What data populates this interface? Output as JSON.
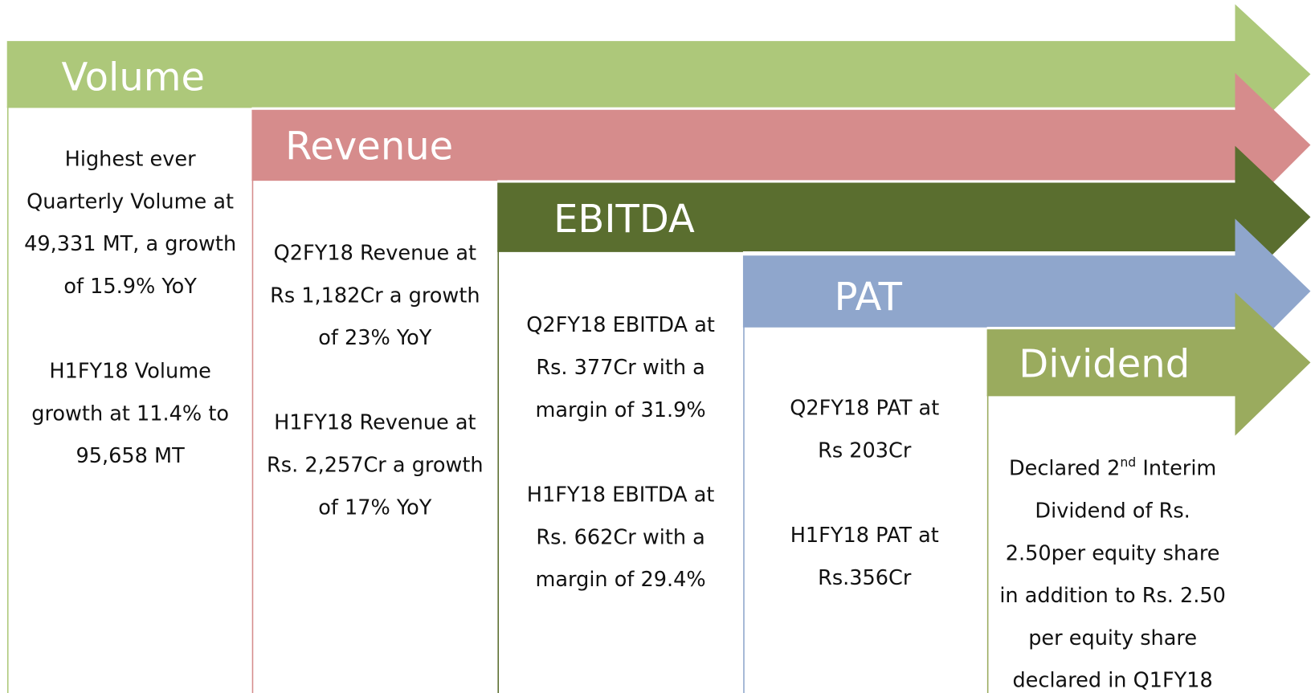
{
  "columns": [
    {
      "title": "Volume",
      "paragraphs": [
        [
          "Highest ever",
          "Quarterly Volume at",
          "49,331 MT, a growth",
          "of 15.9% YoY"
        ],
        [
          "H1FY18 Volume",
          "growth at 11.4% to",
          "95,658 MT"
        ]
      ]
    },
    {
      "title": "Revenue",
      "paragraphs": [
        [
          "Q2FY18 Revenue at",
          "Rs 1,182Cr a growth",
          "of 23% YoY"
        ],
        [
          "H1FY18 Revenue at",
          "Rs. 2,257Cr a growth",
          "of 17% YoY"
        ]
      ]
    },
    {
      "title": "EBITDA",
      "paragraphs": [
        [
          "Q2FY18 EBITDA at",
          "Rs. 377Cr with a",
          "margin of 31.9%"
        ],
        [
          "H1FY18 EBITDA at",
          "Rs. 662Cr with a",
          "margin of 29.4%"
        ]
      ]
    },
    {
      "title": "PAT",
      "paragraphs": [
        [
          "Q2FY18 PAT at",
          "Rs 203Cr"
        ],
        [
          "H1FY18 PAT at",
          "Rs.356Cr"
        ]
      ]
    },
    {
      "title": "Dividend",
      "paragraphs": [
        [
          [
            "Declared 2",
            "nd",
            " Interim"
          ],
          "Dividend of Rs.",
          "2.50per equity share",
          "in addition to Rs. 2.50",
          "per equity share",
          "declared in Q1FY18"
        ]
      ]
    }
  ]
}
